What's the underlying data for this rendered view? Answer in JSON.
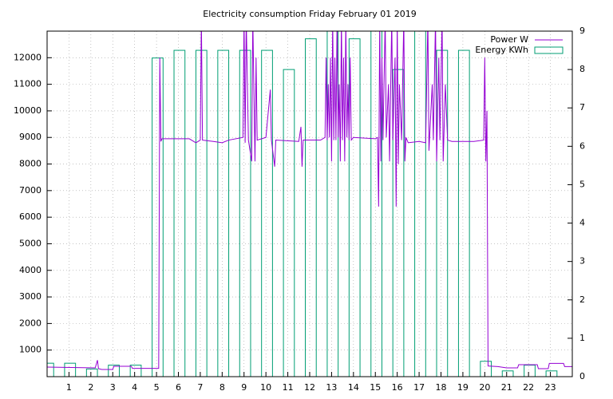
{
  "chart_data": {
    "type": "combo",
    "title": "Electricity consumption Friday February 01 2019",
    "xlim": [
      0,
      24
    ],
    "xticks": [
      1,
      2,
      3,
      4,
      5,
      6,
      7,
      8,
      9,
      10,
      11,
      12,
      13,
      14,
      15,
      16,
      17,
      18,
      19,
      20,
      21,
      22,
      23
    ],
    "ylim": [
      0,
      13000
    ],
    "yticks": [
      1000,
      2000,
      3000,
      4000,
      5000,
      6000,
      7000,
      8000,
      9000,
      10000,
      11000,
      12000
    ],
    "y2lim": [
      0,
      9
    ],
    "y2ticks": [
      0,
      1,
      2,
      3,
      4,
      5,
      6,
      7,
      8,
      9
    ],
    "grid": true,
    "legend": "top-right",
    "series": [
      {
        "name": "Power W",
        "color": "#9400d3",
        "type": "line",
        "x": [
          0,
          2.2,
          2.3,
          2.35,
          2.5,
          3.0,
          3.05,
          3.85,
          3.9,
          5.1,
          5.15,
          5.2,
          5.25,
          6.5,
          6.8,
          7.0,
          7.05,
          7.1,
          7.6,
          8.0,
          8.3,
          8.95,
          9.0,
          9.05,
          9.1,
          9.2,
          9.35,
          9.4,
          9.5,
          9.55,
          9.6,
          10.0,
          10.2,
          10.25,
          10.4,
          10.45,
          11.5,
          11.6,
          11.65,
          11.7,
          12.5,
          12.7,
          12.75,
          12.8,
          12.85,
          12.9,
          12.95,
          13.0,
          13.05,
          13.1,
          13.15,
          13.2,
          13.25,
          13.3,
          13.35,
          13.4,
          13.45,
          13.5,
          13.55,
          13.6,
          13.65,
          13.7,
          13.75,
          13.8,
          13.85,
          13.9,
          14.0,
          15.0,
          15.1,
          15.15,
          15.2,
          15.25,
          15.3,
          15.35,
          15.45,
          15.5,
          15.6,
          15.65,
          15.75,
          15.8,
          15.9,
          15.95,
          16.0,
          16.05,
          16.1,
          16.2,
          16.3,
          16.35,
          16.4,
          16.5,
          17.0,
          17.3,
          17.4,
          17.45,
          17.6,
          17.65,
          17.75,
          17.8,
          17.9,
          17.95,
          18.05,
          18.1,
          18.2,
          18.3,
          18.5,
          19.5,
          19.95,
          20.0,
          20.05,
          20.1,
          20.15,
          20.6,
          21.0,
          21.5,
          21.55,
          22.4,
          22.45,
          22.9,
          22.95,
          23.6,
          23.65,
          24
        ],
        "values": [
          360,
          330,
          620,
          300,
          270,
          270,
          390,
          390,
          310,
          310,
          12000,
          8850,
          8950,
          8950,
          8800,
          8900,
          13500,
          8900,
          8850,
          8800,
          8900,
          9000,
          13500,
          8800,
          13500,
          8900,
          8100,
          13500,
          8100,
          12000,
          8900,
          9000,
          10800,
          8900,
          7900,
          8900,
          8850,
          9400,
          7900,
          8900,
          8900,
          9000,
          12000,
          8900,
          11000,
          9000,
          12000,
          8100,
          13500,
          8900,
          12000,
          8900,
          13500,
          9000,
          11000,
          8100,
          13500,
          8900,
          12000,
          8100,
          13500,
          9000,
          11000,
          8900,
          12000,
          8900,
          9000,
          8950,
          9000,
          6400,
          13500,
          8100,
          12000,
          8900,
          13500,
          9000,
          11000,
          8100,
          13500,
          8900,
          12000,
          6400,
          13500,
          8000,
          11000,
          8900,
          13500,
          8100,
          9000,
          8800,
          8850,
          8800,
          13500,
          8500,
          11000,
          8900,
          13500,
          8100,
          12000,
          8900,
          13500,
          8100,
          11000,
          8900,
          8850,
          8850,
          8900,
          12000,
          8100,
          10000,
          400,
          380,
          330,
          330,
          450,
          450,
          300,
          300,
          500,
          500,
          380,
          380
        ]
      },
      {
        "name": "Energy KWh",
        "color": "#009e73",
        "type": "bar",
        "axis": "y2",
        "x": [
          0,
          1,
          2,
          3,
          4,
          5,
          6,
          7,
          8,
          9,
          10,
          11,
          12,
          13,
          14,
          15,
          16,
          17,
          18,
          19,
          20,
          21,
          22,
          23
        ],
        "values": [
          0.35,
          0.35,
          0.2,
          0.3,
          0.3,
          8.3,
          8.5,
          8.5,
          8.5,
          8.5,
          8.5,
          8.0,
          8.8,
          9.3,
          8.8,
          9.3,
          8.0,
          9.3,
          8.5,
          8.5,
          0.4,
          0.15,
          0.3,
          0.15
        ]
      }
    ]
  }
}
